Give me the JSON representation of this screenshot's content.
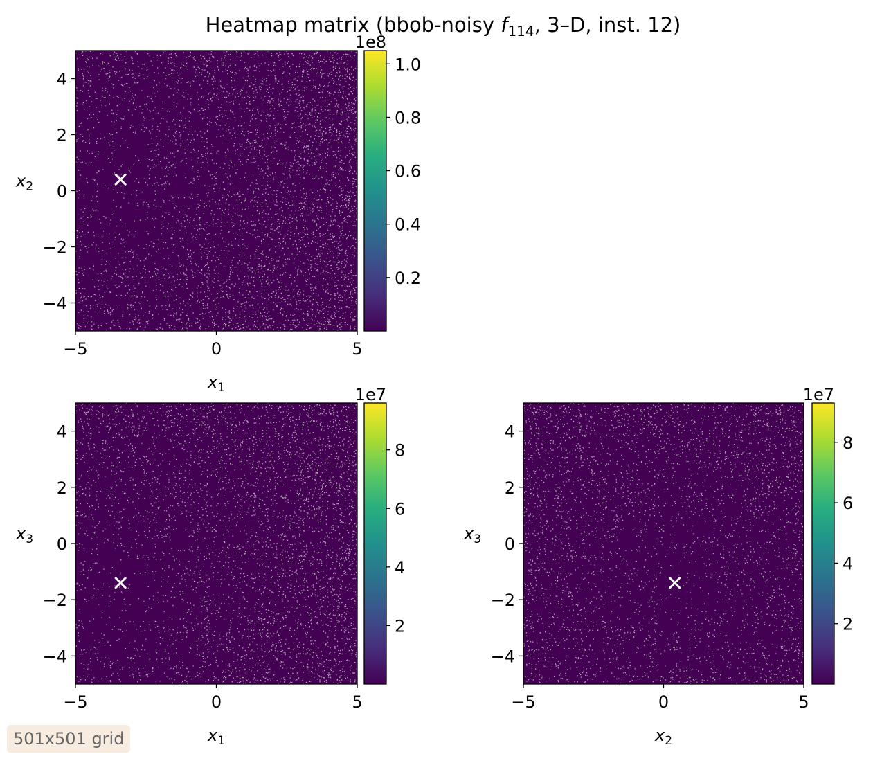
{
  "figure": {
    "title_prefix": "Heatmap matrix (bbob-noisy ",
    "title_func": "f",
    "title_sub": "114",
    "title_suffix": ", 3–D, inst. 12)",
    "grid_note": "501x501 grid"
  },
  "colormap": [
    "#440154",
    "#472d7b",
    "#3b528b",
    "#2c728e",
    "#21918c",
    "#28ae80",
    "#5ec962",
    "#addc30",
    "#fde725"
  ],
  "noise_color": "#c8c8c8",
  "optimum_color": "#ffffff",
  "chart_data": [
    {
      "type": "heatmap",
      "x_name": "x",
      "x_sub": "1",
      "y_name": "x",
      "y_sub": "2",
      "xlim": [
        -5,
        5
      ],
      "ylim": [
        -5,
        5
      ],
      "xticks": [
        -5,
        0,
        5
      ],
      "xtick_labels": [
        "−5",
        "0",
        "5"
      ],
      "yticks": [
        -4,
        -2,
        0,
        2,
        4
      ],
      "ytick_labels": [
        "−4",
        "−2",
        "0",
        "2",
        "4"
      ],
      "optimum": [
        -3.4,
        0.4
      ],
      "colorbar": {
        "exponent_label": "1e8",
        "range": [
          0.0,
          1.05
        ],
        "ticks": [
          0.2,
          0.4,
          0.6,
          0.8,
          1.0
        ],
        "tick_labels": [
          "0.2",
          "0.4",
          "0.6",
          "0.8",
          "1.0"
        ]
      }
    },
    {
      "type": "heatmap",
      "x_name": "x",
      "x_sub": "1",
      "y_name": "x",
      "y_sub": "3",
      "xlim": [
        -5,
        5
      ],
      "ylim": [
        -5,
        5
      ],
      "xticks": [
        -5,
        0,
        5
      ],
      "xtick_labels": [
        "−5",
        "0",
        "5"
      ],
      "yticks": [
        -4,
        -2,
        0,
        2,
        4
      ],
      "ytick_labels": [
        "−4",
        "−2",
        "0",
        "2",
        "4"
      ],
      "optimum": [
        -3.4,
        -1.4
      ],
      "colorbar": {
        "exponent_label": "1e7",
        "range": [
          0.0,
          9.6
        ],
        "ticks": [
          2,
          4,
          6,
          8
        ],
        "tick_labels": [
          "2",
          "4",
          "6",
          "8"
        ]
      }
    },
    {
      "type": "heatmap",
      "x_name": "x",
      "x_sub": "2",
      "y_name": "x",
      "y_sub": "3",
      "xlim": [
        -5,
        5
      ],
      "ylim": [
        -5,
        5
      ],
      "xticks": [
        -5,
        0,
        5
      ],
      "xtick_labels": [
        "−5",
        "0",
        "5"
      ],
      "yticks": [
        -4,
        -2,
        0,
        2,
        4
      ],
      "ytick_labels": [
        "−4",
        "−2",
        "0",
        "2",
        "4"
      ],
      "optimum": [
        0.4,
        -1.4
      ],
      "colorbar": {
        "exponent_label": "1e7",
        "range": [
          0.0,
          9.3
        ],
        "ticks": [
          2,
          4,
          6,
          8
        ],
        "tick_labels": [
          "2",
          "4",
          "6",
          "8"
        ]
      }
    }
  ]
}
